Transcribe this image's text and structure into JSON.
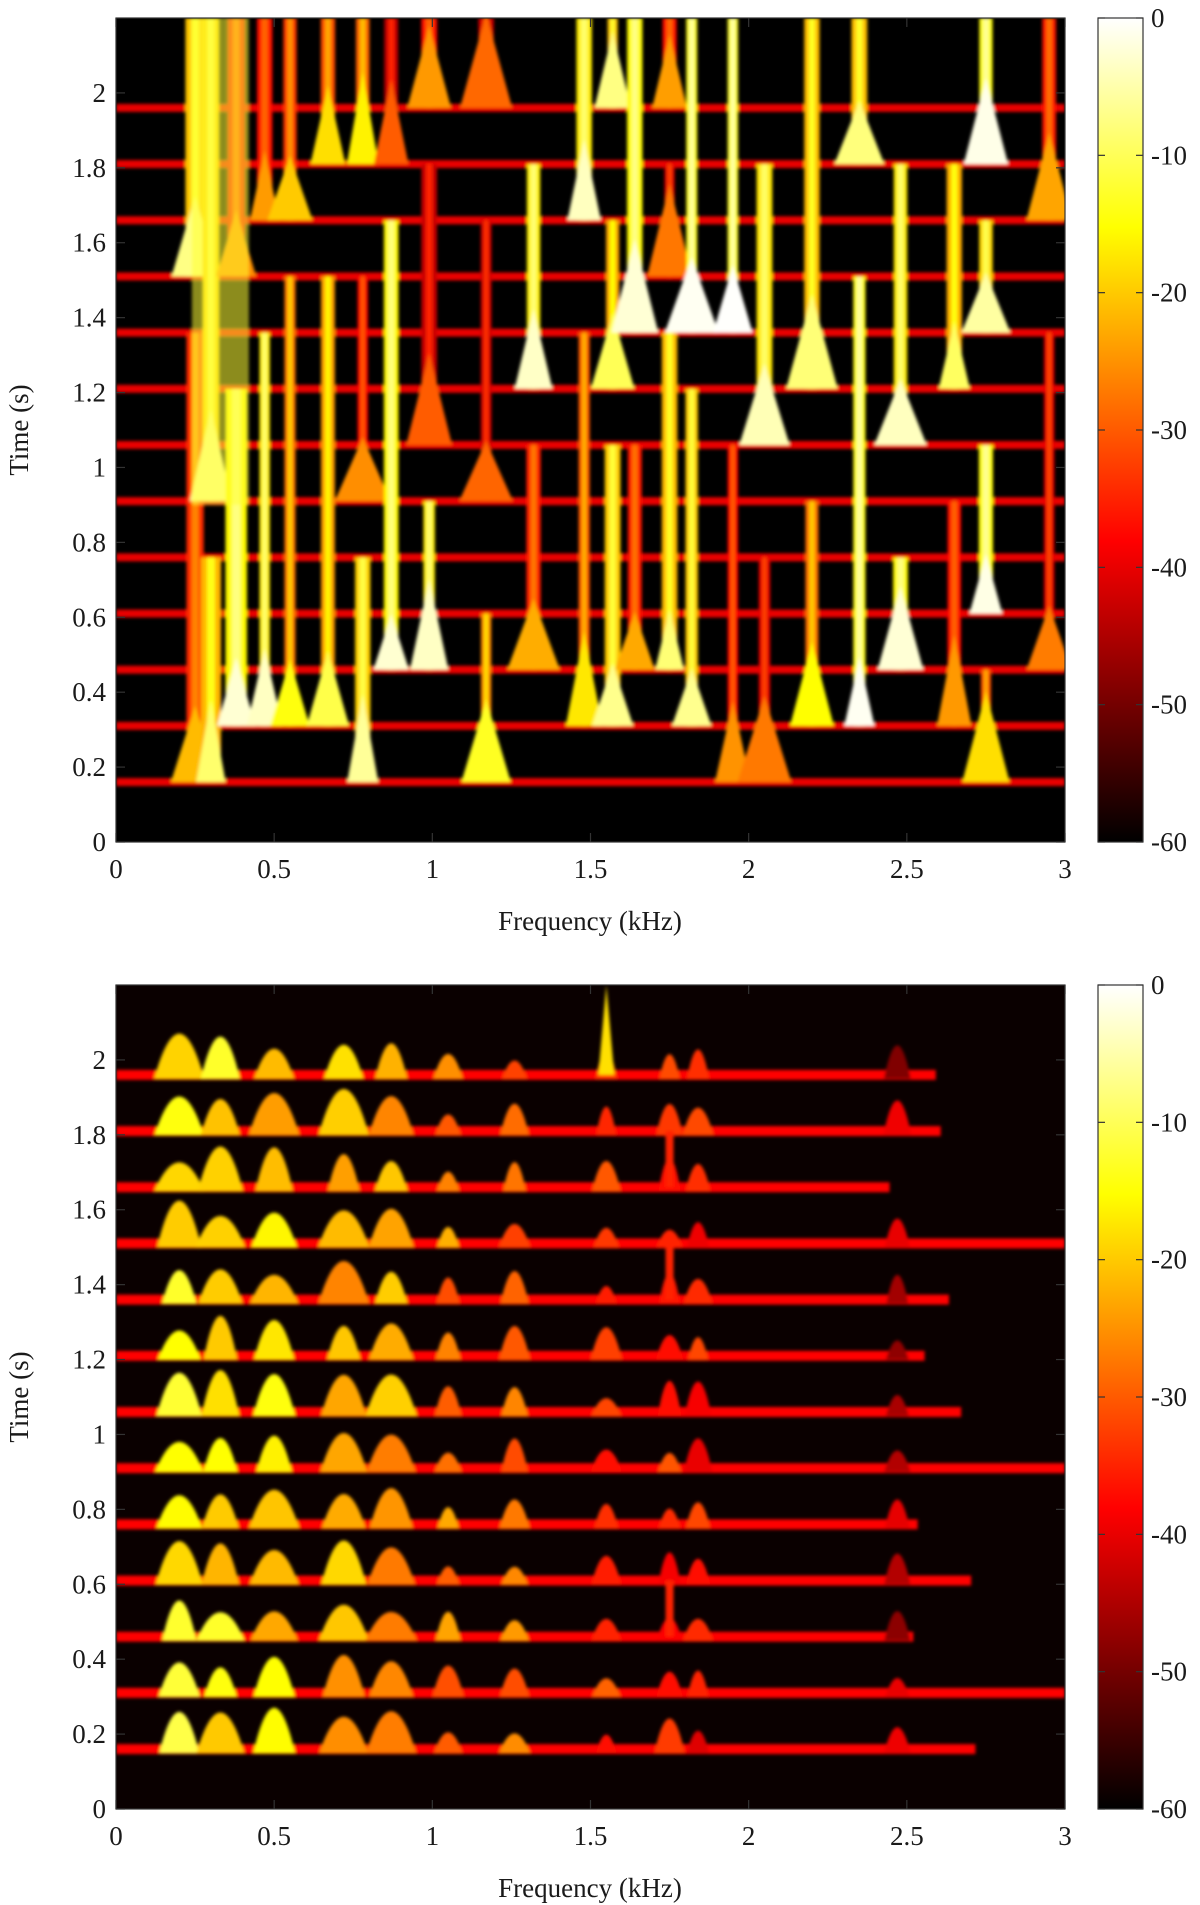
{
  "chart_data": [
    {
      "type": "heatmap",
      "xlabel": "Frequency (kHz)",
      "ylabel": "Time (s)",
      "xlim": [
        0,
        3
      ],
      "ylim": [
        0,
        2.2
      ],
      "xticks": [
        0,
        0.5,
        1,
        1.5,
        2,
        2.5,
        3
      ],
      "xtick_labels": [
        "0",
        "0.5",
        "1",
        "1.5",
        "2",
        "2.5",
        "3"
      ],
      "yticks": [
        0,
        0.2,
        0.4,
        0.6,
        0.8,
        1,
        1.2,
        1.4,
        1.6,
        1.8,
        2
      ],
      "ytick_labels": [
        "0",
        "0.2",
        "0.4",
        "0.6",
        "0.8",
        "1",
        "1.2",
        "1.4",
        "1.6",
        "1.8",
        "2"
      ],
      "colorbar": {
        "colormap": "hot",
        "range": [
          -60,
          0
        ],
        "ticks": [
          0,
          -10,
          -20,
          -30,
          -40,
          -50,
          -60
        ],
        "tick_labels": [
          "0",
          "-10",
          "-20",
          "-30",
          "-40",
          "-50",
          "-60"
        ]
      },
      "frame_times": [
        0.16,
        0.31,
        0.46,
        0.61,
        0.76,
        0.91,
        1.06,
        1.21,
        1.36,
        1.51,
        1.66,
        1.81,
        1.96
      ],
      "peak_frequencies": [
        0.25,
        0.3,
        0.38,
        0.47,
        0.55,
        0.67,
        0.78,
        0.87,
        0.99,
        1.17,
        1.32,
        1.48,
        1.57,
        1.64,
        1.75,
        1.82,
        1.95,
        2.05,
        2.2,
        2.35,
        2.48,
        2.65,
        2.75,
        2.95
      ],
      "level_range_db": [
        -60,
        -5
      ]
    },
    {
      "type": "heatmap",
      "xlabel": "Frequency (kHz)",
      "ylabel": "Time (s)",
      "xlim": [
        0,
        3
      ],
      "ylim": [
        0,
        2.2
      ],
      "xticks": [
        0,
        0.5,
        1,
        1.5,
        2,
        2.5,
        3
      ],
      "xtick_labels": [
        "0",
        "0.5",
        "1",
        "1.5",
        "2",
        "2.5",
        "3"
      ],
      "yticks": [
        0,
        0.2,
        0.4,
        0.6,
        0.8,
        1,
        1.2,
        1.4,
        1.6,
        1.8,
        2
      ],
      "ytick_labels": [
        "0",
        "0.2",
        "0.4",
        "0.6",
        "0.8",
        "1",
        "1.2",
        "1.4",
        "1.6",
        "1.8",
        "2"
      ],
      "colorbar": {
        "colormap": "hot",
        "range": [
          -60,
          0
        ],
        "ticks": [
          0,
          -10,
          -20,
          -30,
          -40,
          -50,
          -60
        ],
        "tick_labels": [
          "0",
          "-10",
          "-20",
          "-30",
          "-40",
          "-50",
          "-60"
        ]
      },
      "frame_times": [
        0.16,
        0.31,
        0.46,
        0.61,
        0.76,
        0.91,
        1.06,
        1.21,
        1.36,
        1.51,
        1.66,
        1.81,
        1.96
      ],
      "peak_frequencies": [
        0.2,
        0.33,
        0.5,
        0.72,
        0.87,
        1.05,
        1.26,
        1.55,
        1.75,
        1.84,
        2.47
      ],
      "level_range_db": [
        -60,
        -10
      ]
    }
  ]
}
